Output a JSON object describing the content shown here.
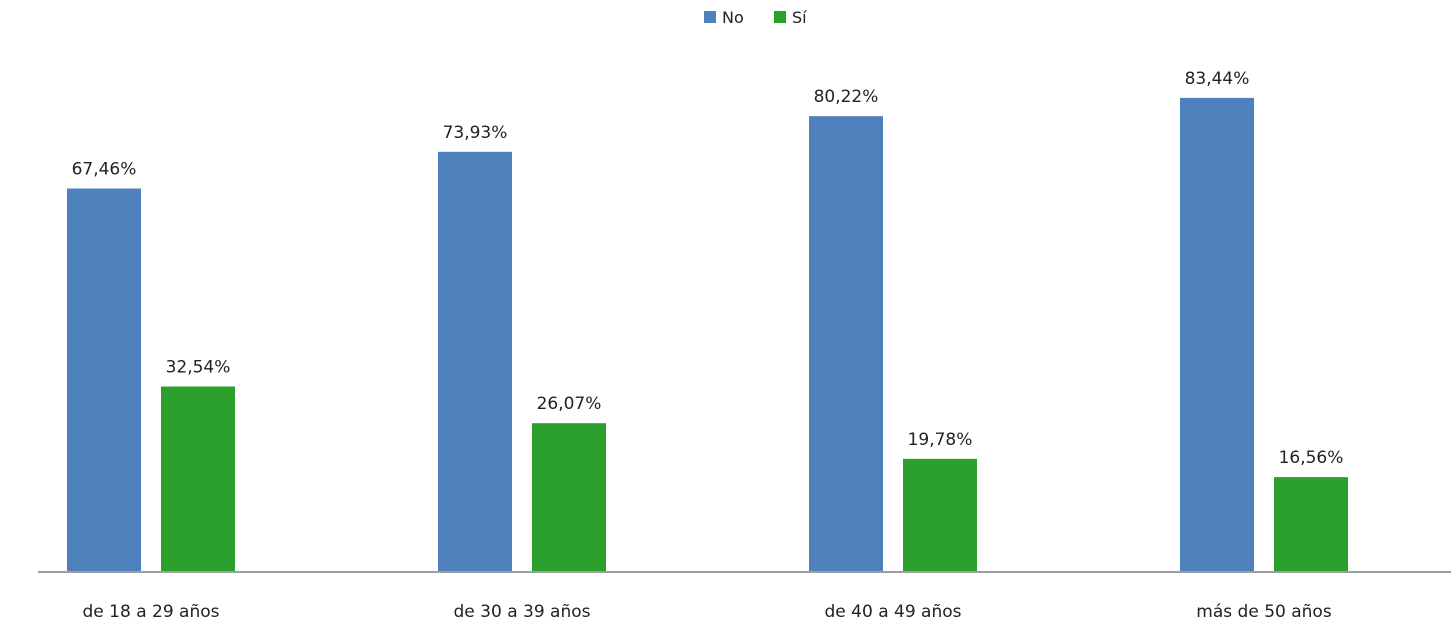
{
  "chart_data": {
    "type": "bar",
    "title": "",
    "xlabel": "",
    "ylabel": "",
    "categories": [
      "de 18 a 29 años",
      "de 30 a 39 años",
      "de 40 a 49 años",
      "más de 50 años"
    ],
    "series": [
      {
        "name": "No",
        "color": "#4f81bd",
        "values": [
          67.46,
          73.93,
          80.22,
          83.44
        ],
        "labels": [
          "67,46%",
          "73,93%",
          "80,22%",
          "83,44%"
        ]
      },
      {
        "name": "Sí",
        "color": "#2ca02c",
        "values": [
          32.54,
          26.07,
          19.78,
          16.56
        ],
        "labels": [
          "32,54%",
          "26,07%",
          "19,78%",
          "16,56%"
        ]
      }
    ],
    "ylim": [
      0,
      100
    ],
    "grid": false,
    "legend_position": "top-center",
    "axis_color": "#7f7f7f"
  }
}
